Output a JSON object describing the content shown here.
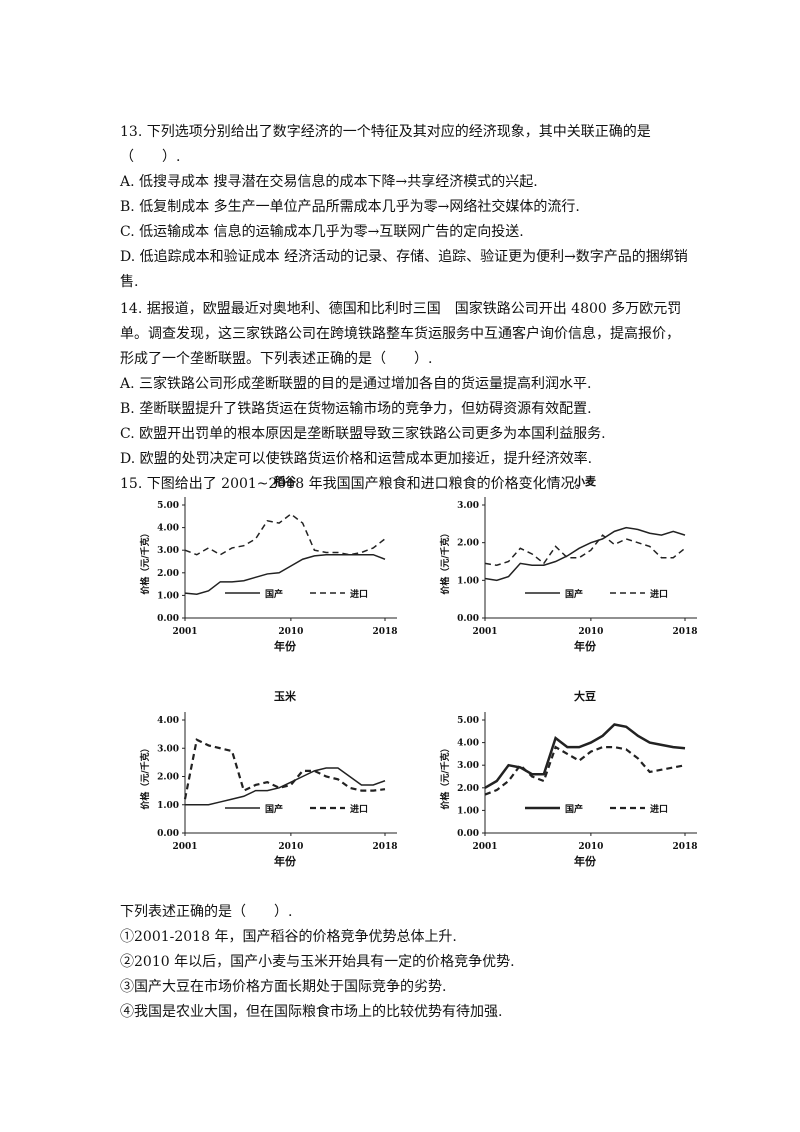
{
  "q13": {
    "stem": "13. 下列选项分别给出了数字经济的一个特征及其对应的经济现象，其中关联正确的是（　　）.",
    "options": [
      "A.  低搜寻成本  搜寻潜在交易信息的成本下降→共享经济模式的兴起.",
      "B.  低复制成本  多生产一单位产品所需成本几乎为零→网络社交媒体的流行.",
      "C.  低运输成本  信息的运输成本几乎为零→互联网广告的定向投送.",
      "D.  低追踪成本和验证成本  经济活动的记录、存储、追踪、验证更为便利→数字产品的捆绑销售."
    ]
  },
  "q14": {
    "stem": "14. 据报道，欧盟最近对奥地利、德国和比利时三国　国家铁路公司开出 4800 多万欧元罚单。调查发现，这三家铁路公司在跨境铁路整车货运服务中互通客户询价信息，提高报价，形成了一个垄断联盟。下列表述正确的是（　　）.",
    "options": [
      "A.  三家铁路公司形成垄断联盟的目的是通过增加各自的货运量提高利润水平.",
      "B.  垄断联盟提升了铁路货运在货物运输市场的竞争力，但妨碍资源有效配置.",
      "C.  欧盟开出罚单的根本原因是垄断联盟导致三家铁路公司更多为本国利益服务.",
      "D.  欧盟的处罚决定可以使铁路货运价格和运营成本更加接近，提升经济效率."
    ]
  },
  "q15": {
    "stem": "15. 下图给出了 2001~2018 年我国国产粮食和进口粮食的价格变化情况。",
    "sub_stem": "下列表述正确的是（　　）.",
    "statements": [
      "①2001-2018 年，国产稻谷的价格竞争优势总体上升.",
      "②2010 年以后，国产小麦与玉米开始具有一定的价格竞争优势.",
      "③国产大豆在市场价格方面长期处于国际竞争的劣势.",
      "④我国是农业大国，但在国际粮食市场上的比较优势有待加强."
    ]
  },
  "chart_data": [
    {
      "type": "line",
      "title": "稻谷",
      "x_label": "年份",
      "y_label": "价格（元/千克）",
      "x": [
        2001,
        2002,
        2003,
        2004,
        2005,
        2006,
        2007,
        2008,
        2009,
        2010,
        2011,
        2012,
        2013,
        2014,
        2015,
        2016,
        2017,
        2018
      ],
      "xlim": [
        2001,
        2018
      ],
      "xticks": [
        2001,
        2010,
        2018
      ],
      "ylim": [
        0,
        5
      ],
      "yticks": [
        {
          "value": 0,
          "label": "0.00"
        },
        {
          "value": 1,
          "label": "1.00"
        },
        {
          "value": 2,
          "label": "2.00"
        },
        {
          "value": 3,
          "label": "3.00"
        },
        {
          "value": 4,
          "label": "4.00"
        },
        {
          "value": 5,
          "label": "5.00"
        }
      ],
      "legend": "lower right",
      "series": [
        {
          "name": "国产",
          "color": "#222222",
          "line_style": "solid",
          "line_width": 1.5,
          "values": [
            1.1,
            1.05,
            1.2,
            1.6,
            1.6,
            1.65,
            1.8,
            1.95,
            2.0,
            2.3,
            2.6,
            2.75,
            2.8,
            2.8,
            2.8,
            2.8,
            2.8,
            2.6
          ]
        },
        {
          "name": "进口",
          "color": "#222222",
          "line_style": "dashed",
          "line_width": 1.5,
          "values": [
            3.0,
            2.8,
            3.1,
            2.8,
            3.1,
            3.2,
            3.5,
            4.3,
            4.2,
            4.6,
            4.2,
            3.0,
            2.9,
            2.9,
            2.8,
            2.9,
            3.1,
            3.5
          ]
        }
      ]
    },
    {
      "type": "line",
      "title": "小麦",
      "x_label": "年份",
      "y_label": "价格（元/千克）",
      "x": [
        2001,
        2002,
        2003,
        2004,
        2005,
        2006,
        2007,
        2008,
        2009,
        2010,
        2011,
        2012,
        2013,
        2014,
        2015,
        2016,
        2017,
        2018
      ],
      "xlim": [
        2001,
        2018
      ],
      "xticks": [
        2001,
        2010,
        2018
      ],
      "ylim": [
        0,
        3
      ],
      "yticks": [
        {
          "value": 0,
          "label": "0.00"
        },
        {
          "value": 1,
          "label": "1.00"
        },
        {
          "value": 2,
          "label": "2.00"
        },
        {
          "value": 3,
          "label": "3.00"
        }
      ],
      "legend": "lower right",
      "series": [
        {
          "name": "国产",
          "color": "#222222",
          "line_style": "solid",
          "line_width": 1.5,
          "values": [
            1.05,
            1.0,
            1.1,
            1.45,
            1.4,
            1.4,
            1.5,
            1.65,
            1.85,
            2.0,
            2.1,
            2.3,
            2.4,
            2.35,
            2.25,
            2.2,
            2.3,
            2.2
          ]
        },
        {
          "name": "进口",
          "color": "#222222",
          "line_style": "dashed",
          "line_width": 1.5,
          "values": [
            1.45,
            1.4,
            1.5,
            1.85,
            1.7,
            1.45,
            1.9,
            1.6,
            1.6,
            1.8,
            2.2,
            1.95,
            2.1,
            2.0,
            1.9,
            1.6,
            1.6,
            1.85
          ]
        }
      ]
    },
    {
      "type": "line",
      "title": "玉米",
      "x_label": "年份",
      "y_label": "价格（元/千克）",
      "x": [
        2001,
        2002,
        2003,
        2004,
        2005,
        2006,
        2007,
        2008,
        2009,
        2010,
        2011,
        2012,
        2013,
        2014,
        2015,
        2016,
        2017,
        2018
      ],
      "xlim": [
        2001,
        2018
      ],
      "xticks": [
        2001,
        2010,
        2018
      ],
      "ylim": [
        0,
        4
      ],
      "yticks": [
        {
          "value": 0,
          "label": "0.00"
        },
        {
          "value": 1,
          "label": "1.00"
        },
        {
          "value": 2,
          "label": "2.00"
        },
        {
          "value": 3,
          "label": "3.00"
        },
        {
          "value": 4,
          "label": "4.00"
        }
      ],
      "legend": "lower right",
      "series": [
        {
          "name": "国产",
          "color": "#222222",
          "line_style": "solid",
          "line_width": 1.5,
          "values": [
            1.0,
            1.0,
            1.0,
            1.1,
            1.2,
            1.3,
            1.5,
            1.5,
            1.6,
            1.8,
            2.0,
            2.2,
            2.3,
            2.3,
            2.0,
            1.7,
            1.7,
            1.85
          ]
        },
        {
          "name": "进口",
          "color": "#222222",
          "line_style": "dashed",
          "line_width": 2.2,
          "values": [
            1.2,
            3.3,
            3.1,
            3.0,
            2.9,
            1.5,
            1.7,
            1.8,
            1.6,
            1.7,
            2.2,
            2.2,
            2.0,
            1.9,
            1.6,
            1.5,
            1.5,
            1.55
          ]
        }
      ]
    },
    {
      "type": "line",
      "title": "大豆",
      "x_label": "年份",
      "y_label": "价格（元/千克）",
      "x": [
        2001,
        2002,
        2003,
        2004,
        2005,
        2006,
        2007,
        2008,
        2009,
        2010,
        2011,
        2012,
        2013,
        2014,
        2015,
        2016,
        2017,
        2018
      ],
      "xlim": [
        2001,
        2018
      ],
      "xticks": [
        2001,
        2010,
        2018
      ],
      "ylim": [
        0,
        5
      ],
      "yticks": [
        {
          "value": 0,
          "label": "0.00"
        },
        {
          "value": 1,
          "label": "1.00"
        },
        {
          "value": 2,
          "label": "2.00"
        },
        {
          "value": 3,
          "label": "3.00"
        },
        {
          "value": 4,
          "label": "4.00"
        },
        {
          "value": 5,
          "label": "5.00"
        }
      ],
      "legend": "lower right",
      "series": [
        {
          "name": "国产",
          "color": "#222222",
          "line_style": "solid",
          "line_width": 2.5,
          "values": [
            2.0,
            2.3,
            3.0,
            2.9,
            2.6,
            2.6,
            4.2,
            3.8,
            3.8,
            4.0,
            4.3,
            4.8,
            4.7,
            4.3,
            4.0,
            3.9,
            3.8,
            3.75
          ]
        },
        {
          "name": "进口",
          "color": "#222222",
          "line_style": "dashed",
          "line_width": 2.2,
          "values": [
            1.7,
            1.9,
            2.3,
            3.0,
            2.5,
            2.3,
            3.8,
            3.5,
            3.2,
            3.6,
            3.8,
            3.8,
            3.7,
            3.3,
            2.7,
            2.8,
            2.9,
            3.0
          ]
        }
      ]
    }
  ]
}
